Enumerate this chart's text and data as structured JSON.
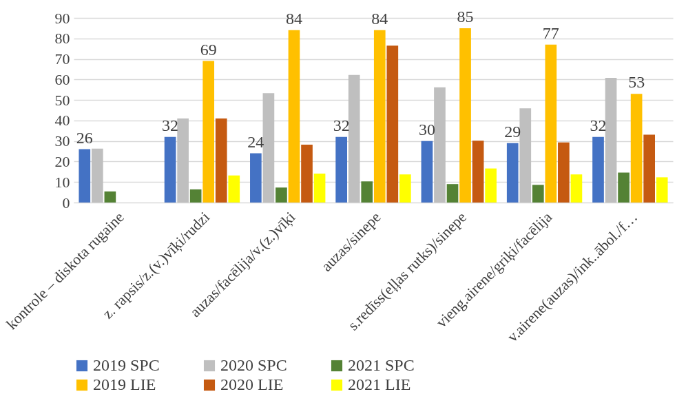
{
  "chart_data": {
    "type": "bar",
    "categories": [
      "kontrole – diskota rugaine",
      "z. rapsis/z.(v.)vīķi/rudzi",
      "auzas/facēlija/v.(z.)vīķi",
      "auzas/sinepe",
      "s.redīss(eļļas rutks)/sinepe",
      "vieng.airene/griķi/facēlija",
      "v.airene(auzas)/ink..ābol./f…"
    ],
    "series": [
      {
        "name": "2019 SPC",
        "color": "#4472c4",
        "values": [
          26,
          32,
          24,
          32,
          30,
          29,
          32
        ],
        "value_labels": [
          "26",
          "32",
          "24",
          "32",
          "30",
          "29",
          "32"
        ]
      },
      {
        "name": "2020 SPC",
        "color": "#bfbfbf",
        "values": [
          26.3,
          41.0,
          53.3,
          62.2,
          56.2,
          45.9,
          60.8
        ]
      },
      {
        "name": "2021 SPC",
        "color": "#548235",
        "values": [
          5.4,
          6.4,
          7.3,
          10.3,
          9.0,
          8.6,
          14.6
        ]
      },
      {
        "name": "2019 LIE",
        "color": "#ffc000",
        "values": [
          null,
          69,
          84,
          84,
          85,
          77,
          53
        ],
        "value_labels": [
          null,
          "69",
          "84",
          "84",
          "85",
          "77",
          "53"
        ]
      },
      {
        "name": "2020 LIE",
        "color": "#c55a11",
        "values": [
          null,
          41.0,
          28.2,
          76.5,
          30.1,
          29.3,
          33.1
        ]
      },
      {
        "name": "2021 LIE",
        "color": "#ffff00",
        "values": [
          null,
          13.2,
          14.1,
          13.7,
          16.6,
          13.7,
          12.3
        ]
      }
    ],
    "ylim": [
      0,
      90
    ],
    "yticks": [
      0,
      10,
      20,
      30,
      40,
      50,
      60,
      70,
      80,
      90
    ],
    "grid": "y",
    "legend": "bottom"
  }
}
